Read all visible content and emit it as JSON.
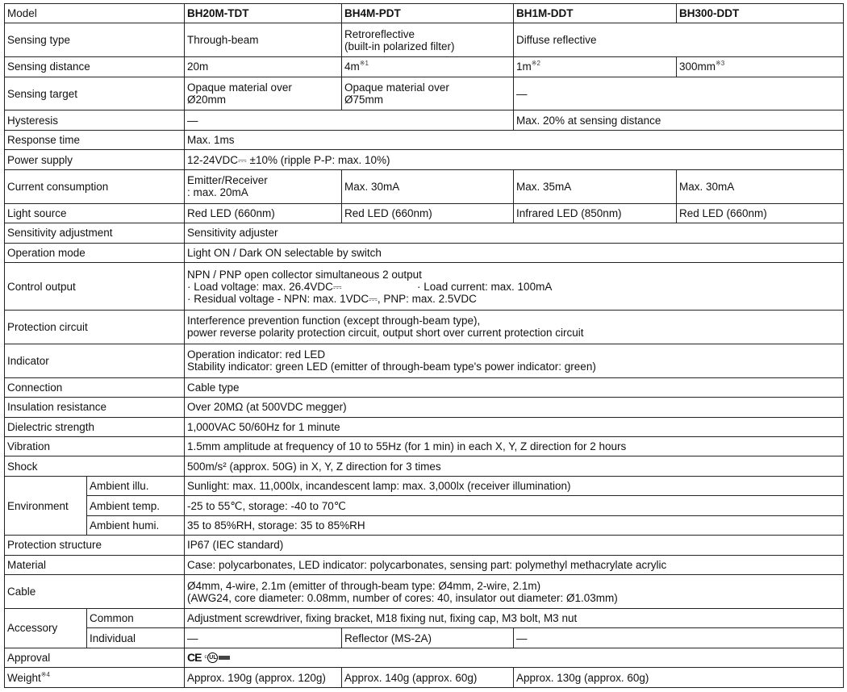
{
  "models": [
    "BH20M-TDT",
    "BH4M-PDT",
    "BH1M-DDT",
    "BH300-DDT"
  ],
  "rows": [
    {
      "label": "Model",
      "values": [
        "BH20M-TDT",
        "BH4M-PDT",
        "BH1M-DDT",
        "BH300-DDT"
      ]
    },
    {
      "label": "Sensing type",
      "values": [
        "Through-beam",
        [
          "Retroreflective",
          "(built-in polarized filter)"
        ],
        "Diffuse reflective"
      ]
    },
    {
      "label": "Sensing distance",
      "values": [
        {
          "text": "20m"
        },
        {
          "text": "4m",
          "sup": "※1"
        },
        {
          "text": "1m",
          "sup": "※2"
        },
        {
          "text": "300mm",
          "sup": "※3"
        }
      ]
    },
    {
      "label": "Sensing target",
      "values": [
        [
          "Opaque material over",
          "Ø20mm"
        ],
        [
          "Opaque material over",
          "Ø75mm"
        ],
        "—"
      ]
    },
    {
      "label": "Hysteresis",
      "values": [
        "—",
        "Max. 20% at sensing distance"
      ]
    },
    {
      "label": "Response time",
      "values": [
        "Max. 1ms"
      ]
    },
    {
      "label": "Power supply",
      "values": [
        "12-24VDC⎓ ±10% (ripple P-P: max. 10%)"
      ]
    },
    {
      "label": "Current consumption",
      "values": [
        [
          "Emitter/Receiver",
          ": max. 20mA"
        ],
        "Max. 30mA",
        "Max. 35mA",
        "Max. 30mA"
      ]
    },
    {
      "label": "Light source",
      "values": [
        "Red LED (660nm)",
        "Red LED (660nm)",
        "Infrared LED (850nm)",
        "Red LED (660nm)"
      ]
    },
    {
      "label": "Sensitivity adjustment",
      "values": [
        "Sensitivity adjuster"
      ]
    },
    {
      "label": "Operation mode",
      "values": [
        "Light ON / Dark ON selectable by switch"
      ]
    },
    {
      "label": "Control output",
      "values": [
        [
          "NPN / PNP open collector simultaneous 2 output",
          [
            "· Load voltage: max. 26.4VDC⎓",
            "· Load current: max. 100mA"
          ],
          "· Residual voltage - NPN: max. 1VDC⎓, PNP:  max. 2.5VDC"
        ]
      ]
    },
    {
      "label": "Protection circuit",
      "values": [
        [
          "Interference prevention function (except through-beam type),",
          "power reverse polarity protection circuit, output short over current protection circuit"
        ]
      ]
    },
    {
      "label": "Indicator",
      "values": [
        [
          "Operation indicator: red LED",
          "Stability indicator: green LED (emitter of through-beam type's power indicator: green)"
        ]
      ]
    },
    {
      "label": "Connection",
      "values": [
        "Cable type"
      ]
    },
    {
      "label": "Insulation resistance",
      "values": [
        "Over 20MΩ (at 500VDC megger)"
      ]
    },
    {
      "label": "Dielectric strength",
      "values": [
        "1,000VAC 50/60Hz for 1 minute"
      ]
    },
    {
      "label": "Vibration",
      "values": [
        "1.5mm amplitude at frequency of 10 to 55Hz (for 1 min) in each X, Y, Z direction for 2 hours"
      ]
    },
    {
      "label": "Shock",
      "values": [
        "500m/s² (approx. 50G) in X, Y, Z direction for 3 times"
      ]
    },
    {
      "label": "Environment",
      "sublabel": "Ambient illu.",
      "values": [
        "Sunlight: max. 11,000lx, incandescent lamp: max. 3,000lx (receiver illumination)"
      ]
    },
    {
      "label": "Environment",
      "sublabel": "Ambient temp.",
      "values": [
        "-25 to 55℃, storage: -40 to 70℃"
      ]
    },
    {
      "label": "Environment",
      "sublabel": "Ambient humi.",
      "values": [
        "35 to 85%RH, storage: 35 to 85%RH"
      ]
    },
    {
      "label": "Protection structure",
      "values": [
        "IP67 (IEC standard)"
      ]
    },
    {
      "label": "Material",
      "values": [
        "Case: polycarbonates, LED indicator: polycarbonates, sensing part: polymethyl methacrylate acrylic"
      ]
    },
    {
      "label": "Cable",
      "values": [
        [
          "Ø4mm, 4-wire, 2.1m (emitter of through-beam type: Ø4mm, 2-wire, 2.1m)",
          "(AWG24, core diameter: 0.08mm, number of cores: 40, insulator out diameter: Ø1.03mm)"
        ]
      ]
    },
    {
      "label": "Accessory",
      "sublabel": "Common",
      "values": [
        "Adjustment screwdriver, fixing bracket, M18 fixing nut, fixing cap, M3 bolt, M3 nut"
      ]
    },
    {
      "label": "Accessory",
      "sublabel": "Individual",
      "values": [
        "—",
        "Reflector (MS-2A)",
        "—"
      ]
    },
    {
      "label": "Approval",
      "values": [
        {
          "logos": [
            "CE",
            "c UL us"
          ]
        }
      ]
    },
    {
      "label": "Weight",
      "label_sup": "※4",
      "values": [
        "Approx. 190g (approx. 120g)",
        "Approx. 140g (approx. 60g)",
        "Approx. 130g (approx. 60g)"
      ]
    }
  ]
}
